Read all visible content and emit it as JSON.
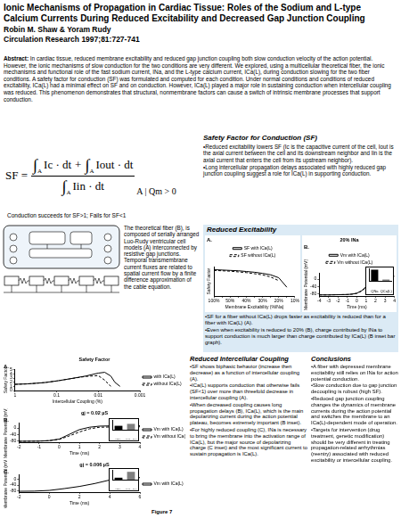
{
  "header": {
    "title": "Ionic Mechanisms of Propagation in Cardiac Tissue: Roles of the Sodium and L-type Calcium Currents During Reduced Excitability and Decreased Gap Junction Coupling",
    "authors": "Robin M. Shaw & Yoram Rudy",
    "journal": "Circulation Research 1997;81:727-741"
  },
  "abstract": {
    "label": "Abstract:",
    "text": "In cardiac tissue, reduced membrane excitability and reduced gap junction coupling both slow conduction velocity of the action potential. However, the ionic mechanisms of slow conduction for the two conditions are very different. We explored, using a multicellular theoretical fiber, the ionic mechanisms and functional role of the fast sodium current, INa, and the L-type calcium current, ICa(L), during conduction slowing for the two fiber conditions. A safety factor for conduction (SF) was formulated and computed for each condition. Under normal conditions and conditions of reduced excitability, ICa(L) had a minimal effect on SF and on conduction. However, ICa(L) played a major role in sustaining conduction when intercellular coupling was reduced. This phenomenon demonstrates that structural, nonmembrane factors can cause a switch of intrinsic membrane processes that support conduction."
  },
  "safety_factor": {
    "heading": "Safety Factor for Conduction (SF)",
    "formula": {
      "lhs": "SF =",
      "integral_sign": "∫",
      "limit": "A",
      "numerator_terms": [
        "Ic · dt",
        "Iout · dt"
      ],
      "plus": "+",
      "denominator_terms": [
        "Iin · dt"
      ],
      "condition": "A | Qm > 0"
    },
    "caption": "Conduction succeeds for SF>1; Fails for SF<1",
    "bullets": [
      "•Reduced excitability lowers SF (Ic is the capacitive current of the cell, Iout is the axial current between the cell and its downstream neighbor and Iin is the axial current that enters the cell from its upstream neighbor).",
      "•Long intercellular propagation delays associated with highly reduced gap junction coupling suggest a role for ICa(L) in supporting conduction."
    ]
  },
  "model": {
    "text": "The theoretical fiber (B), is composed of serially arranged Luo-Rudy ventricular cell models (A) interconnected by resistive gap junctions. Temporal transmembrane current fluxes are related to spatial current flow by a finite difference approximation of the cable equation."
  },
  "reduced_excitability": {
    "heading": "Reduced Excitability",
    "bullets": [
      "•SF for a fiber without ICa(L) drops faster as excitability is reduced than for a fiber with ICa(L) (A).",
      "•Even when excitability is reduced to 20% (B), charge contributed by INa to support conduction is much larger than charge contributed by ICa(L) (B inset bar graph)."
    ]
  },
  "reduced_coupling": {
    "heading": "Reduced Intercellular Coupling",
    "bullets": [
      "•SF shows biphasic behavior (increase then decrease) as a function of intercellular coupling (A).",
      "•ICa(L) supports conduction that otherwise fails (SF<1) over more than threefold decrease in intercellular coupling (A).",
      "•When decreased coupling causes long propagation delays (B), ICa(L), which is the main depolarizing current during the action potential plateau, becomes extremely important (B inset).",
      "•For highly reduced coupling (C), INa is necessary to bring the membrane into the activation range of ICa(L), but the major source of depolarizing charge (C inset) and the most significant current to sustain propagation is ICa(L)."
    ]
  },
  "conclusions": {
    "heading": "Conclusions",
    "bullets": [
      "•A fiber with depressed membrane excitability still relies on INa for action potential conduction.",
      "•Slow conduction due to gap junction decoupling is robust (high SF).",
      "•Reduced gap junction coupling changes the dynamics of membrane currents during the action potential and switches the membrane to an ICa(L)-dependent mode of operation.",
      "•Targets for intervention (drug treatment, genetic modification) should be very different in treating propagation-related arrhythmias (reentry) associated with reduced excitability or intercellular coupling."
    ]
  },
  "figure_label": "Figure 7",
  "chart_data": [
    {
      "type": "line",
      "subtitle": "A.",
      "xlabel": "Membrane Excitability (%INa)",
      "ylabel": "Safety Factor",
      "categories": [
        "100%",
        null,
        "50%",
        null,
        "40%",
        null,
        "30%",
        null,
        "20%",
        null,
        "10%"
      ],
      "series": [
        {
          "name": "SF with ICa(L)",
          "color": "#000000",
          "line_style": "solid",
          "values": [
            3.6,
            3.55,
            3.5,
            3.45,
            3.35,
            3.25,
            3.1,
            2.9,
            2.5,
            1.2,
            null
          ]
        },
        {
          "name": "SF without ICa(L)",
          "color": "#000000",
          "line_style": "dashed",
          "values": [
            3.5,
            3.45,
            3.4,
            3.3,
            3.2,
            3.05,
            2.9,
            2.6,
            2.1,
            null,
            null
          ]
        }
      ],
      "ylim": [
        0,
        4
      ],
      "tick_labels": "x",
      "grid": false,
      "legend": "top"
    },
    {
      "type": "line",
      "title": "20% INa",
      "subtitle": "B.",
      "xlabel": "Time (ms)",
      "ylabel": "Membrane Potential (mV)",
      "x": [
        -4,
        -3,
        -2,
        -1,
        -0.5,
        0,
        0.5,
        1,
        1.5,
        2,
        2.5,
        3,
        3.5,
        4
      ],
      "series": [
        {
          "name": "Vm with ICa(L)",
          "color": "#000000",
          "line_style": "solid",
          "values": [
            -84,
            -84,
            -83,
            -82,
            -80,
            -75,
            -62,
            -40,
            -15,
            2,
            10,
            14,
            16,
            16
          ]
        },
        {
          "name": "Vm without ICa(L)",
          "color": "#000000",
          "line_style": "dashed",
          "values": [
            -84,
            -84,
            -83,
            -82,
            -80,
            -76,
            -64,
            -43,
            -18,
            0,
            8,
            12,
            14,
            14
          ]
        }
      ],
      "xlim": [
        -4,
        4
      ],
      "xticks": [
        -4,
        -3,
        -2,
        -1,
        0,
        1,
        2,
        3,
        4
      ],
      "ylim": [
        -90,
        30
      ],
      "yticks": [
        -80,
        -40,
        0
      ],
      "grid": false,
      "legend": "top"
    },
    {
      "type": "bar",
      "categories": [
        "QNa",
        "QCa(L)"
      ],
      "values": [
        0.9,
        0.1
      ],
      "colors": [
        "#000000",
        "#808080"
      ],
      "ylim": [
        0,
        1
      ],
      "tick_labels": "x",
      "grid": false
    },
    {
      "type": "line",
      "title": "Safety Factor",
      "subtitle": "A.",
      "xlabel": "Intercellular Coupling (%)",
      "ylabel": "Safety Factor",
      "x": [
        1,
        0.5,
        0.2,
        0.1,
        0.05,
        0.02,
        0.01,
        0.007,
        0.005,
        0.004,
        0.003
      ],
      "series": [
        {
          "name": "with ICa(L)",
          "color": "#000000",
          "line_style": "solid",
          "values": [
            1.5,
            1.6,
            1.9,
            2.3,
            2.8,
            3.5,
            4.2,
            4.4,
            3.5,
            2,
            1
          ]
        },
        {
          "name": "without ICa(L)",
          "color": "#000000",
          "line_style": "dashed",
          "values": [
            1.5,
            1.6,
            1.9,
            2.3,
            2.8,
            3.4,
            3.6,
            2.5,
            1,
            null,
            null
          ]
        }
      ],
      "log": "x",
      "xlim": [
        1,
        0.001
      ],
      "xticks": [
        1,
        0.1,
        0.01,
        0.001
      ],
      "ylim": [
        0,
        5
      ],
      "yticks": [
        0,
        1,
        2,
        3,
        4,
        5
      ],
      "grid": false,
      "legend": "right"
    },
    {
      "type": "line",
      "title": "gj = 0.02 µS",
      "subtitle": "B.",
      "xlabel": "Time (ms)",
      "ylabel": "Membrane Potential (mV)",
      "x": [
        -2,
        -1,
        -0.5,
        0,
        0.5,
        1,
        1.5,
        2,
        3,
        4
      ],
      "series": [
        {
          "name": "Vm with ICa(L)",
          "color": "#000000",
          "line_style": "solid",
          "values": [
            -84,
            -83,
            -80,
            -70,
            -40,
            -10,
            5,
            12,
            15,
            15
          ]
        },
        {
          "name": "Vm without ICa(L)",
          "color": "#000000",
          "line_style": "dashed",
          "values": [
            -84,
            -83,
            -80,
            -72,
            -50,
            -25,
            -5,
            5,
            8,
            8
          ]
        }
      ],
      "xlim": [
        -2,
        4
      ],
      "xticks": [
        -2,
        -1,
        0,
        1,
        2,
        3,
        4
      ],
      "ylim": [
        -90,
        30
      ],
      "yticks": [
        -80,
        -40,
        0
      ],
      "grid": false,
      "legend": "right"
    },
    {
      "type": "bar",
      "categories": [
        "QNa",
        "QCa(L)"
      ],
      "values": [
        0.4,
        0.6
      ],
      "colors": [
        "#000000",
        "#808080"
      ],
      "ylim": [
        0,
        1
      ],
      "tick_labels": "x",
      "grid": false
    },
    {
      "type": "line",
      "title": "gj = 0.006 µS",
      "subtitle": "C.",
      "xlabel": "Time (ms)",
      "ylabel": "Membrane Potential (mV)",
      "x": [
        -2,
        -1,
        0,
        1,
        2,
        3,
        4,
        5,
        6
      ],
      "series": [
        {
          "name": "Vm with ICa(L)",
          "color": "#000000",
          "line_style": "solid",
          "values": [
            -84,
            -83,
            -78,
            -65,
            -50,
            -30,
            -5,
            8,
            12
          ]
        }
      ],
      "xlim": [
        -2,
        6
      ],
      "xticks": [
        -2,
        0,
        2,
        4,
        6
      ],
      "ylim": [
        -90,
        30
      ],
      "yticks": [
        -80,
        -40,
        0
      ],
      "grid": false,
      "legend": "right"
    },
    {
      "type": "bar",
      "categories": [
        "QNa",
        "QCa(L)"
      ],
      "values": [
        0.2,
        0.8
      ],
      "colors": [
        "#000000",
        "#808080"
      ],
      "ylim": [
        0,
        1
      ],
      "tick_labels": "x",
      "grid": false
    }
  ]
}
